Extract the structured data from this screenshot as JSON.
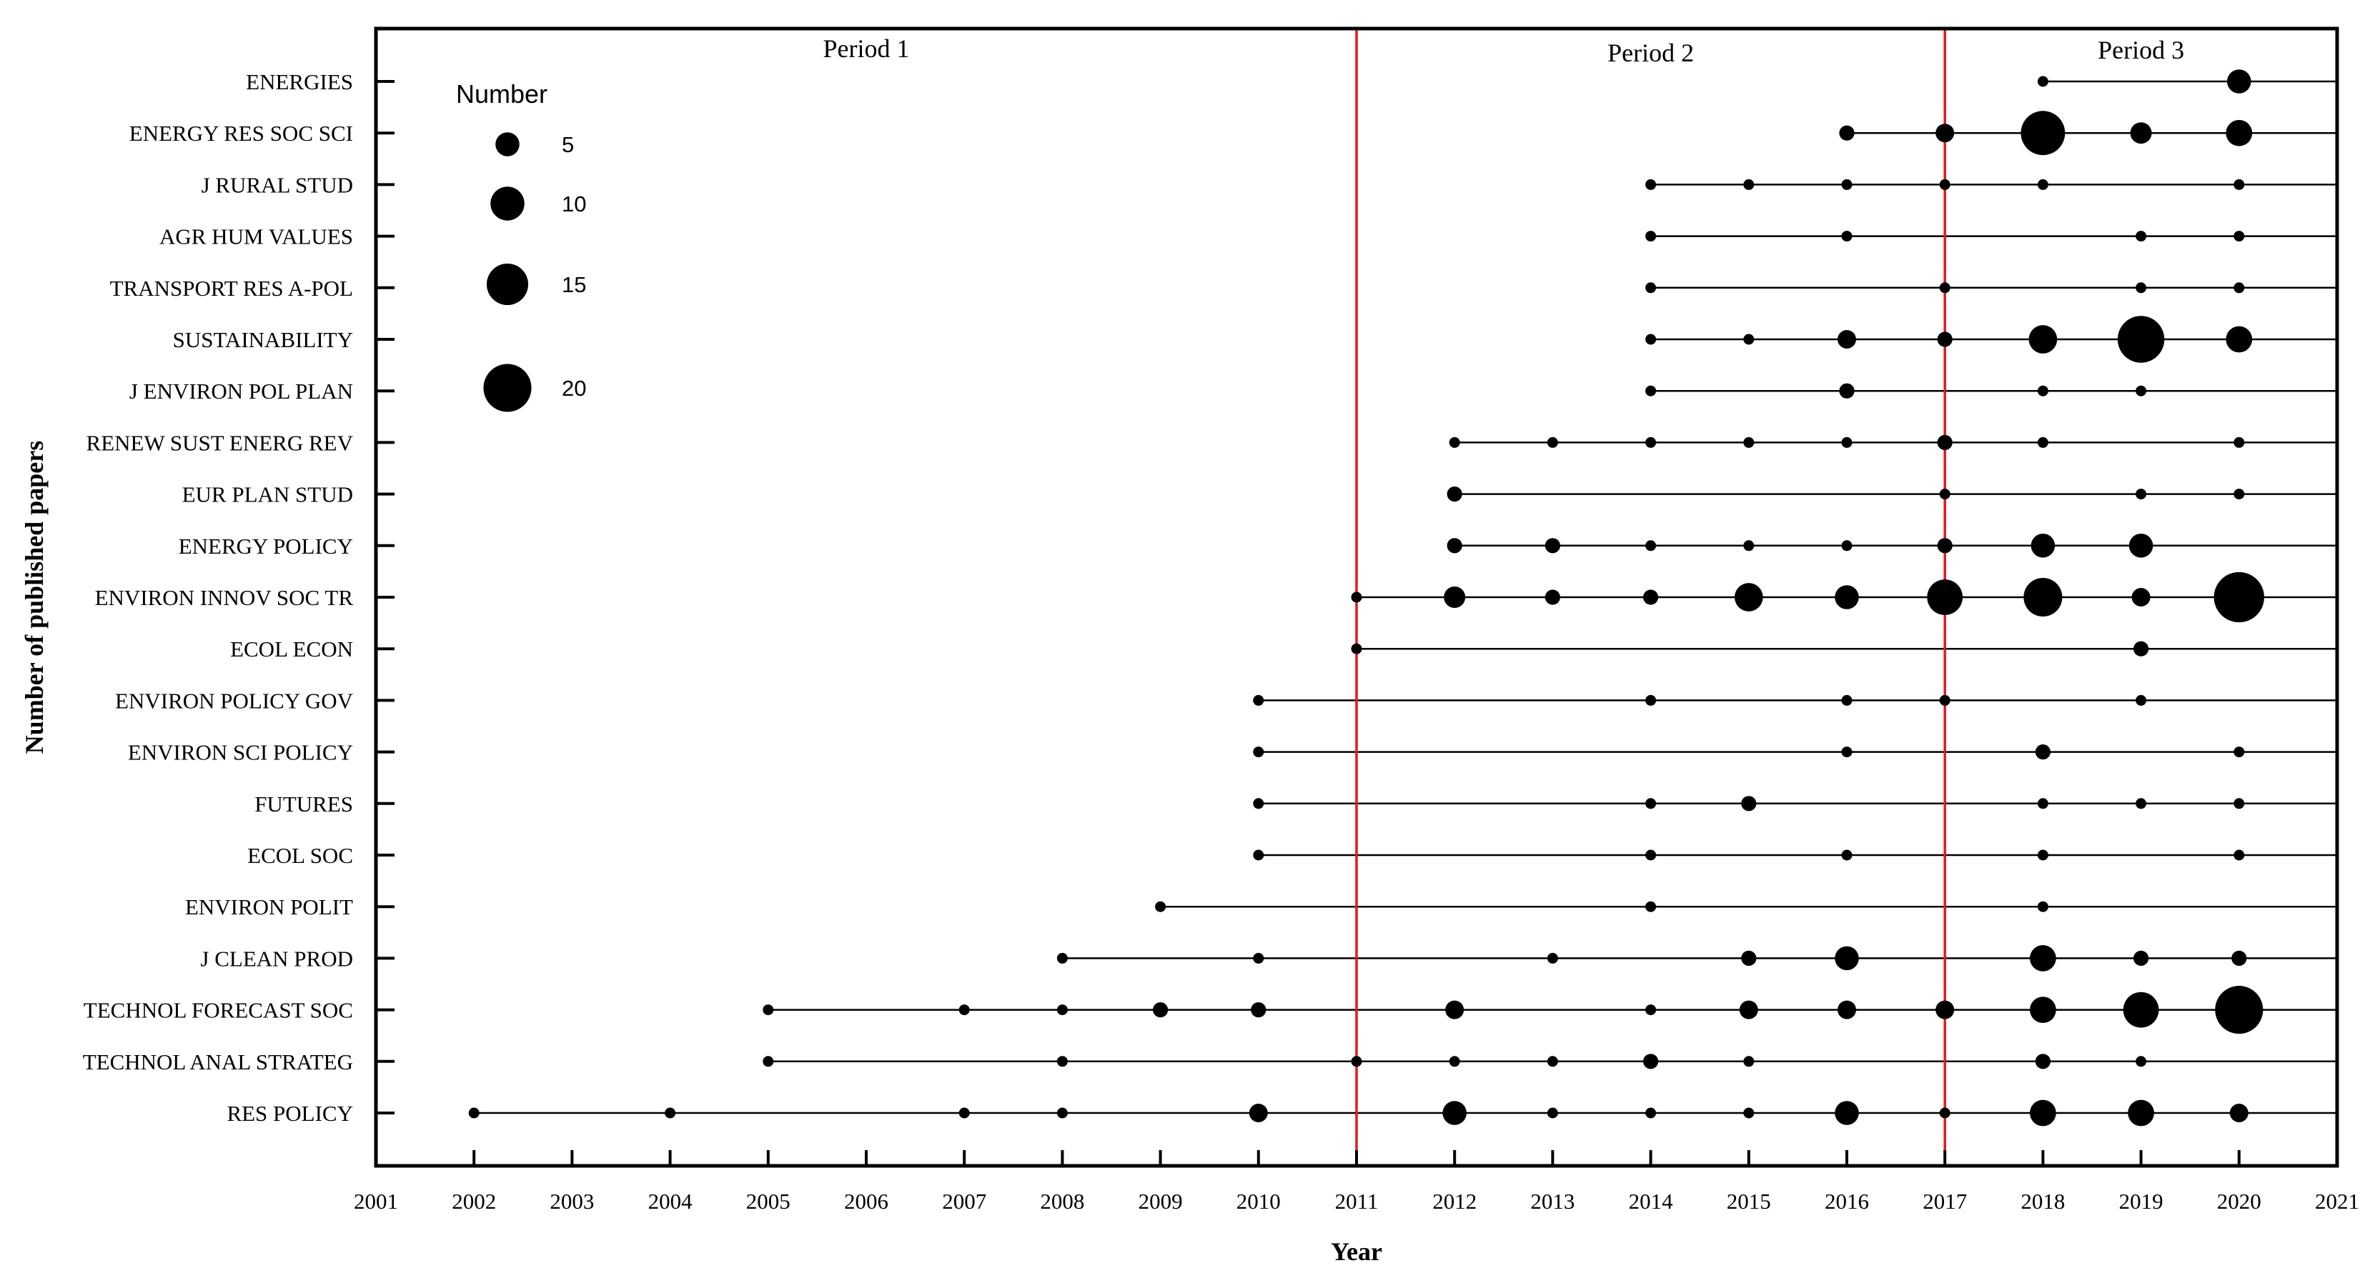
{
  "chart_data": {
    "type": "scatter",
    "xlabel": "Year",
    "ylabel": "Number of published papers",
    "xlim": [
      2001,
      2021
    ],
    "x_ticks": [
      "2001",
      "2002",
      "2003",
      "2004",
      "2005",
      "2006",
      "2007",
      "2008",
      "2009",
      "2010",
      "2011",
      "2012",
      "2013",
      "2014",
      "2015",
      "2016",
      "2017",
      "2018",
      "2019",
      "2020",
      "2021"
    ],
    "journals": [
      "ENERGIES",
      "ENERGY RES SOC SCI",
      "J RURAL STUD",
      "AGR HUM VALUES",
      "TRANSPORT RES A-POL",
      "SUSTAINABILITY",
      "J ENVIRON POL PLAN",
      "RENEW SUST ENERG REV",
      "EUR PLAN STUD",
      "ENERGY POLICY",
      "ENVIRON INNOV SOC TR",
      "ECOL ECON",
      "ENVIRON POLICY GOV",
      "ENVIRON SCI POLICY",
      "FUTURES",
      "ECOL SOC",
      "ENVIRON POLIT",
      "J CLEAN PROD",
      "TECHNOL FORECAST SOC",
      "TECHNOL ANAL STRATEG",
      "RES POLICY"
    ],
    "period_lines": [
      2011,
      2017
    ],
    "period_line_color": "#e31a1c",
    "periods": [
      {
        "label": "Period 1"
      },
      {
        "label": "Period 2"
      },
      {
        "label": "Period 3"
      }
    ],
    "legend": {
      "title": "Number",
      "position": "top-left",
      "entries": [
        {
          "value": 5,
          "label": "5"
        },
        {
          "value": 10,
          "label": "10"
        },
        {
          "value": 15,
          "label": "15"
        },
        {
          "value": 20,
          "label": "20"
        }
      ]
    },
    "series": [
      {
        "journal": "ENERGIES",
        "points": [
          [
            2018,
            1
          ],
          [
            2020,
            5
          ]
        ]
      },
      {
        "journal": "ENERGY RES SOC SCI",
        "points": [
          [
            2016,
            2
          ],
          [
            2017,
            3
          ],
          [
            2018,
            17
          ],
          [
            2019,
            4
          ],
          [
            2020,
            6
          ]
        ]
      },
      {
        "journal": "J RURAL STUD",
        "points": [
          [
            2014,
            1
          ],
          [
            2015,
            1
          ],
          [
            2016,
            1
          ],
          [
            2017,
            1
          ],
          [
            2018,
            1
          ],
          [
            2020,
            1
          ]
        ]
      },
      {
        "journal": "AGR HUM VALUES",
        "points": [
          [
            2014,
            1
          ],
          [
            2016,
            1
          ],
          [
            2019,
            1
          ],
          [
            2020,
            1
          ]
        ]
      },
      {
        "journal": "TRANSPORT RES A-POL",
        "points": [
          [
            2014,
            1
          ],
          [
            2017,
            1
          ],
          [
            2019,
            1
          ],
          [
            2020,
            1
          ]
        ]
      },
      {
        "journal": "SUSTAINABILITY",
        "points": [
          [
            2014,
            1
          ],
          [
            2015,
            1
          ],
          [
            2016,
            3
          ],
          [
            2017,
            2
          ],
          [
            2018,
            7
          ],
          [
            2019,
            19
          ],
          [
            2020,
            6
          ]
        ]
      },
      {
        "journal": "J ENVIRON POL PLAN",
        "points": [
          [
            2014,
            1
          ],
          [
            2016,
            2
          ],
          [
            2018,
            1
          ],
          [
            2019,
            1
          ]
        ]
      },
      {
        "journal": "RENEW SUST ENERG REV",
        "points": [
          [
            2012,
            1
          ],
          [
            2013,
            1
          ],
          [
            2014,
            1
          ],
          [
            2015,
            1
          ],
          [
            2016,
            1
          ],
          [
            2017,
            2
          ],
          [
            2018,
            1
          ],
          [
            2020,
            1
          ]
        ]
      },
      {
        "journal": "EUR PLAN STUD",
        "points": [
          [
            2012,
            2
          ],
          [
            2017,
            1
          ],
          [
            2019,
            1
          ],
          [
            2020,
            1
          ]
        ]
      },
      {
        "journal": "ENERGY POLICY",
        "points": [
          [
            2012,
            2
          ],
          [
            2013,
            2
          ],
          [
            2014,
            1
          ],
          [
            2015,
            1
          ],
          [
            2016,
            1
          ],
          [
            2017,
            2
          ],
          [
            2018,
            5
          ],
          [
            2019,
            5
          ]
        ]
      },
      {
        "journal": "ENVIRON INNOV SOC TR",
        "points": [
          [
            2011,
            1
          ],
          [
            2012,
            4
          ],
          [
            2013,
            2
          ],
          [
            2014,
            2
          ],
          [
            2015,
            7
          ],
          [
            2016,
            5
          ],
          [
            2017,
            11
          ],
          [
            2018,
            13
          ],
          [
            2019,
            3
          ],
          [
            2020,
            22
          ]
        ]
      },
      {
        "journal": "ECOL ECON",
        "points": [
          [
            2011,
            1
          ],
          [
            2019,
            2
          ]
        ]
      },
      {
        "journal": "ENVIRON POLICY GOV",
        "points": [
          [
            2010,
            1
          ],
          [
            2014,
            1
          ],
          [
            2016,
            1
          ],
          [
            2017,
            1
          ],
          [
            2019,
            1
          ]
        ]
      },
      {
        "journal": "ENVIRON SCI POLICY",
        "points": [
          [
            2010,
            1
          ],
          [
            2016,
            1
          ],
          [
            2018,
            2
          ],
          [
            2020,
            1
          ]
        ]
      },
      {
        "journal": "FUTURES",
        "points": [
          [
            2010,
            1
          ],
          [
            2014,
            1
          ],
          [
            2015,
            2
          ],
          [
            2018,
            1
          ],
          [
            2019,
            1
          ],
          [
            2020,
            1
          ]
        ]
      },
      {
        "journal": "ECOL SOC",
        "points": [
          [
            2010,
            1
          ],
          [
            2014,
            1
          ],
          [
            2016,
            1
          ],
          [
            2018,
            1
          ],
          [
            2020,
            1
          ]
        ]
      },
      {
        "journal": "ENVIRON POLIT",
        "points": [
          [
            2009,
            1
          ],
          [
            2014,
            1
          ],
          [
            2018,
            1
          ]
        ]
      },
      {
        "journal": "J CLEAN PROD",
        "points": [
          [
            2008,
            1
          ],
          [
            2010,
            1
          ],
          [
            2013,
            1
          ],
          [
            2015,
            2
          ],
          [
            2016,
            5
          ],
          [
            2018,
            6
          ],
          [
            2019,
            2
          ],
          [
            2020,
            2
          ]
        ]
      },
      {
        "journal": "TECHNOL FORECAST SOC",
        "points": [
          [
            2005,
            1
          ],
          [
            2007,
            1
          ],
          [
            2008,
            1
          ],
          [
            2009,
            2
          ],
          [
            2010,
            2
          ],
          [
            2012,
            3
          ],
          [
            2014,
            1
          ],
          [
            2015,
            3
          ],
          [
            2016,
            3
          ],
          [
            2017,
            3
          ],
          [
            2018,
            6
          ],
          [
            2019,
            11
          ],
          [
            2020,
            20
          ]
        ]
      },
      {
        "journal": "TECHNOL ANAL STRATEG",
        "points": [
          [
            2005,
            1
          ],
          [
            2008,
            1
          ],
          [
            2011,
            1
          ],
          [
            2012,
            1
          ],
          [
            2013,
            1
          ],
          [
            2014,
            2
          ],
          [
            2015,
            1
          ],
          [
            2018,
            2
          ],
          [
            2019,
            1
          ]
        ]
      },
      {
        "journal": "RES POLICY",
        "points": [
          [
            2002,
            1
          ],
          [
            2004,
            1
          ],
          [
            2007,
            1
          ],
          [
            2008,
            1
          ],
          [
            2010,
            3
          ],
          [
            2012,
            5
          ],
          [
            2013,
            1
          ],
          [
            2014,
            1
          ],
          [
            2015,
            1
          ],
          [
            2016,
            5
          ],
          [
            2017,
            1
          ],
          [
            2018,
            6
          ],
          [
            2019,
            6
          ],
          [
            2020,
            3
          ]
        ]
      }
    ]
  }
}
